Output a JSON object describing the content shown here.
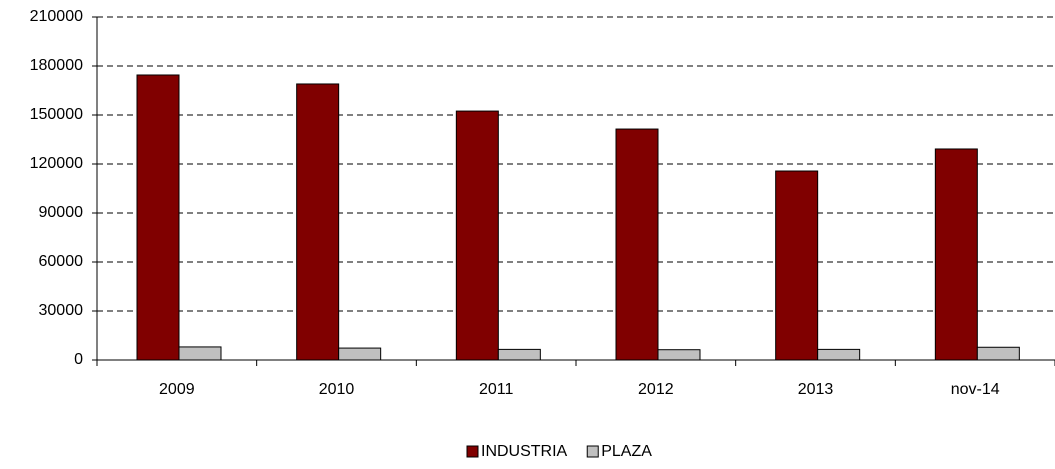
{
  "chart_data": {
    "type": "bar",
    "categories": [
      "2009",
      "2010",
      "2011",
      "2012",
      "2013",
      "nov-14"
    ],
    "series": [
      {
        "name": "INDUSTRIA",
        "color": "#800000",
        "values": [
          174500,
          169000,
          152400,
          141400,
          115700,
          129200
        ]
      },
      {
        "name": "PLAZA",
        "color": "#c0c0c0",
        "values": [
          8000,
          7300,
          6500,
          6300,
          6500,
          7800
        ]
      }
    ],
    "ylim": [
      0,
      210000
    ],
    "yticks": [
      0,
      30000,
      60000,
      90000,
      120000,
      150000,
      180000,
      210000
    ],
    "grid": true,
    "legend": "bottom"
  }
}
